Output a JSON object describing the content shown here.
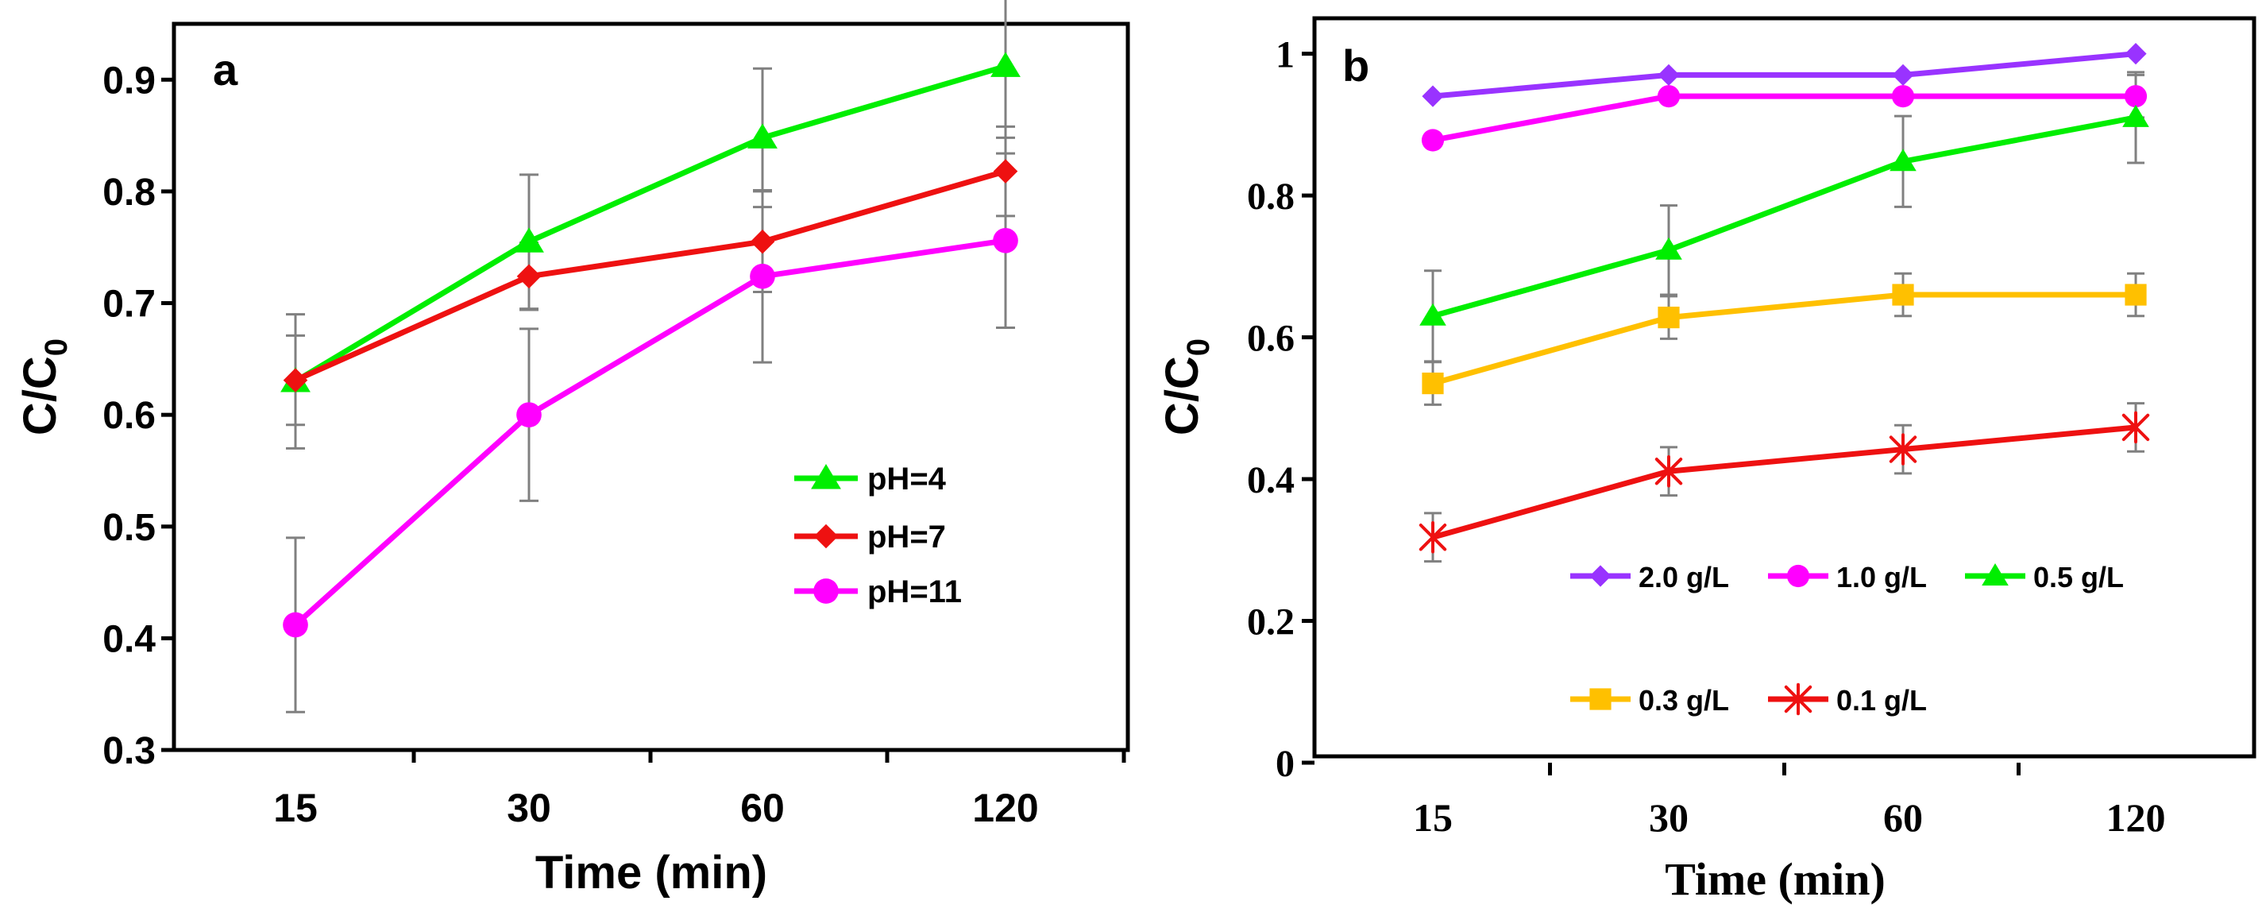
{
  "colors": {
    "green": "#00ee00",
    "red": "#ee1111",
    "magenta": "#ff00ff",
    "purple": "#9933ff",
    "orange": "#ffc000",
    "axis": "#000000",
    "errorbar": "#808080"
  },
  "chart_data": [
    {
      "type": "line",
      "panel_label": "a",
      "categories": [
        "15",
        "30",
        "60",
        "120"
      ],
      "xlabel": "Time (min)",
      "ylabel_main": "C/C",
      "ylabel_sub": "0",
      "ylim": [
        0.3,
        0.95
      ],
      "yticks": [
        0.3,
        0.4,
        0.5,
        0.6,
        0.7,
        0.8,
        0.9
      ],
      "ytick_labels": [
        "0.3",
        "0.4",
        "0.5",
        "0.6",
        "0.7",
        "0.8",
        "0.9"
      ],
      "legend_position": "center-right",
      "series": [
        {
          "name": "pH=4",
          "color": "#00ee00",
          "marker": "triangle",
          "values": [
            0.63,
            0.755,
            0.848,
            0.912
          ],
          "errors": [
            0.06,
            0.06,
            0.062,
            0.064
          ]
        },
        {
          "name": "pH=7",
          "color": "#ee1111",
          "marker": "diamond",
          "values": [
            0.631,
            0.724,
            0.755,
            0.818
          ],
          "errors": [
            0.04,
            0.03,
            0.045,
            0.04
          ]
        },
        {
          "name": "pH=11",
          "color": "#ff00ff",
          "marker": "circle",
          "values": [
            0.412,
            0.6,
            0.724,
            0.756
          ],
          "errors": [
            0.078,
            0.077,
            0.077,
            0.078
          ]
        }
      ]
    },
    {
      "type": "line",
      "panel_label": "b",
      "categories": [
        "15",
        "30",
        "60",
        "120"
      ],
      "xlabel": "Time (min)",
      "ylabel_main": "C/C",
      "ylabel_sub": "0",
      "ylim": [
        0,
        1.05
      ],
      "yticks": [
        0,
        0.2,
        0.4,
        0.6,
        0.8,
        1
      ],
      "ytick_labels": [
        "0",
        "0.2",
        "0.4",
        "0.6",
        "0.8",
        "1"
      ],
      "legend_position": "bottom-center",
      "series": [
        {
          "name": "2.0 g/L",
          "color": "#9933ff",
          "marker": "diamond",
          "values": [
            0.94,
            0.97,
            0.97,
            1.0
          ],
          "errors": [
            0,
            0,
            0,
            0
          ]
        },
        {
          "name": "1.0 g/L",
          "color": "#ff00ff",
          "marker": "circle",
          "values": [
            0.878,
            0.94,
            0.94,
            0.94
          ],
          "errors": [
            0,
            0,
            0,
            0.03
          ]
        },
        {
          "name": "0.5 g/L",
          "color": "#00ee00",
          "marker": "triangle",
          "values": [
            0.63,
            0.723,
            0.848,
            0.91
          ],
          "errors": [
            0.064,
            0.063,
            0.064,
            0.064
          ]
        },
        {
          "name": "0.3 g/L",
          "color": "#ffc000",
          "marker": "square",
          "values": [
            0.535,
            0.628,
            0.66,
            0.66
          ],
          "errors": [
            0.03,
            0.03,
            0.03,
            0.03
          ]
        },
        {
          "name": "0.1 g/L",
          "color": "#ee1111",
          "marker": "star",
          "values": [
            0.318,
            0.411,
            0.442,
            0.473
          ],
          "errors": [
            0.034,
            0.034,
            0.034,
            0.034
          ]
        }
      ]
    }
  ]
}
